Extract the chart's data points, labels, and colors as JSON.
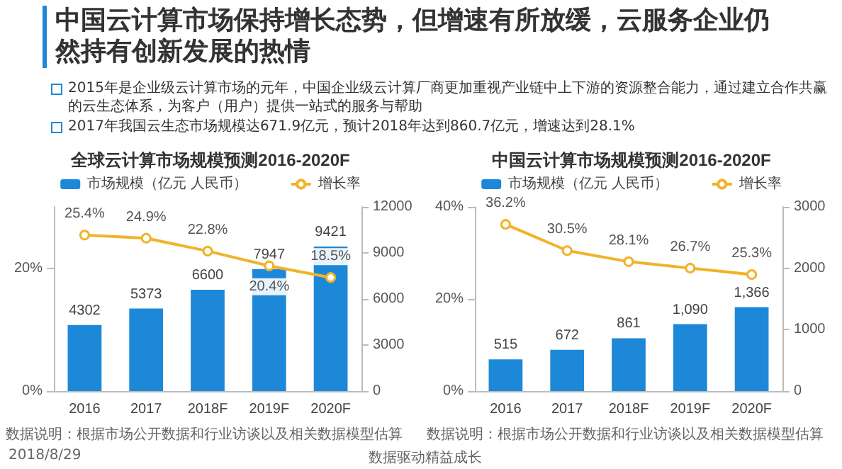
{
  "chart_data": [
    {
      "type": "other",
      "title": "中国云计算市场保持增长态势，但增速有所放缓，云服务企业仍然持有创新发展的热情",
      "annotations": [
        "2015年是企业级云计算市场的元年，中国企业级云计算厂商更加重视产业链中上下游的资源整合能力，通过建立合作共赢的云生态体系，为客户（用户）提供一站式的服务与帮助",
        "2017年我国云生态市场规模达671.9亿元，预计2018年达到860.7亿元，增速达到28.1%",
        "2018/8/29",
        "数据驱动精益成长"
      ]
    },
    {
      "type": "bar",
      "title": "全球云计算市场规模预测2016-2020F",
      "categories": [
        "2016",
        "2017",
        "2018F",
        "2019F",
        "2020F"
      ],
      "series": [
        {
          "name": "市场规模（亿元 人民币）",
          "type": "bar",
          "axis": "y2",
          "color": "#1e88d8",
          "values": [
            4302,
            5373,
            6600,
            7947,
            9421
          ],
          "value_labels": [
            "4302",
            "5373",
            "6600",
            "7947",
            "9421"
          ]
        },
        {
          "name": "增长率",
          "type": "line",
          "color": "#f0b429",
          "values": [
            25.4,
            24.9,
            22.8,
            20.4,
            18.5
          ],
          "value_labels": [
            "25.4%",
            "24.9%",
            "22.8%",
            "20.4%",
            "18.5%"
          ]
        }
      ],
      "ylim": [
        0,
        30
      ],
      "yticks": [
        {
          "value": 0,
          "label": "0%"
        },
        {
          "value": 20,
          "label": "20%"
        }
      ],
      "y2lim": [
        0,
        12000
      ],
      "y2ticks": [
        0,
        3000,
        6000,
        9000,
        12000
      ],
      "legend": "top",
      "marker": "circle",
      "annotations": [
        "数据说明：根据市场公开数据和行业访谈以及相关数据模型估算"
      ]
    },
    {
      "type": "bar",
      "title": "中国云计算市场规模预测2016-2020F",
      "categories": [
        "2016",
        "2017",
        "2018F",
        "2019F",
        "2020F"
      ],
      "series": [
        {
          "name": "市场规模（亿元 人民币）",
          "type": "bar",
          "axis": "y2",
          "color": "#1e88d8",
          "values": [
            515,
            672,
            861,
            1090,
            1366
          ],
          "value_labels": [
            "515",
            "672",
            "861",
            "1,090",
            "1,366"
          ]
        },
        {
          "name": "增长率",
          "type": "line",
          "color": "#f0b429",
          "values": [
            36.2,
            30.5,
            28.1,
            26.7,
            25.3
          ],
          "value_labels": [
            "36.2%",
            "30.5%",
            "28.1%",
            "26.7%",
            "25.3%"
          ]
        }
      ],
      "ylim": [
        0,
        40
      ],
      "yticks": [
        {
          "value": 0,
          "label": "0%"
        },
        {
          "value": 20,
          "label": "20%"
        },
        {
          "value": 40,
          "label": "40%"
        }
      ],
      "y2lim": [
        0,
        3000
      ],
      "y2ticks": [
        0,
        1000,
        2000,
        3000
      ],
      "legend": "top",
      "marker": "circle",
      "annotations": [
        "数据说明：根据市场公开数据和行业访谈以及相关数据模型估算"
      ]
    }
  ]
}
